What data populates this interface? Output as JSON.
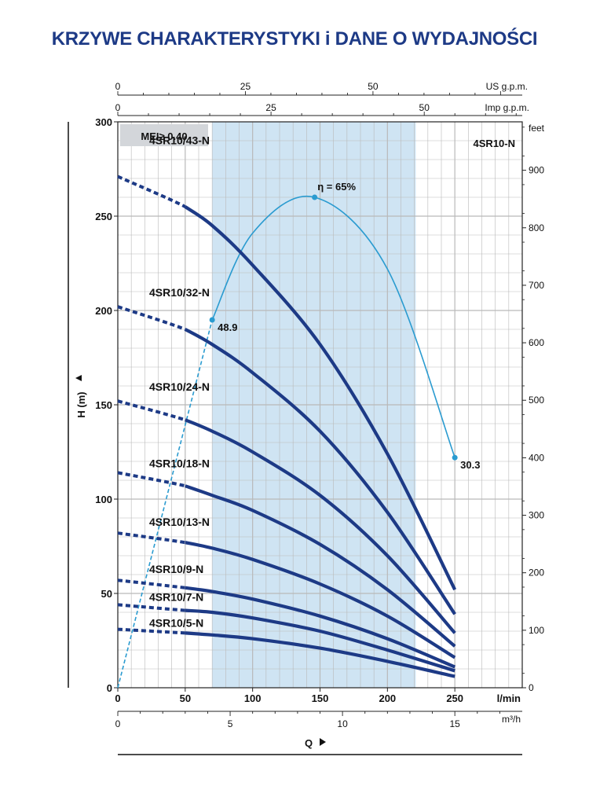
{
  "title": "KRZYWE CHARAKTERYSTYKI i DANE O WYDAJNOŚCI",
  "colors": {
    "title": "#1d3a86",
    "curve": "#1d3a86",
    "efficiency": "#2a9bd0",
    "band": "#cfe4f3",
    "grid": "#b9b9b9",
    "badge": "#d3d6da"
  },
  "chart_data": {
    "type": "line",
    "model": "4SR10-N",
    "mei": "MEI≥ 0.40",
    "grid": true,
    "xlabel": "Q",
    "ylabel": "H  (m)",
    "x_unit": "l/min",
    "xlim": [
      0,
      300
    ],
    "ylim": [
      0,
      300
    ],
    "x_ticks": [
      "0",
      "50",
      "100",
      "150",
      "200",
      "250"
    ],
    "y_ticks": [
      "0",
      "50",
      "100",
      "150",
      "200",
      "250",
      "300"
    ],
    "feet_label": "feet",
    "feet_ticks": [
      "0",
      "100",
      "200",
      "300",
      "400",
      "500",
      "600",
      "700",
      "800",
      "900"
    ],
    "usgpm_label": "US g.p.m.",
    "usgpm_ticks": [
      "0",
      "25",
      "50"
    ],
    "impgpm_label": "Imp g.p.m.",
    "impgpm_ticks": [
      "0",
      "25",
      "50"
    ],
    "m3h_label": "m³/h",
    "m3h_ticks": [
      "0",
      "5",
      "10",
      "15"
    ],
    "recommended_range": [
      70,
      221
    ],
    "series": [
      {
        "name": "4SR10/43-N",
        "x": [
          0,
          50,
          70,
          100,
          150,
          200,
          250
        ],
        "y": [
          271,
          255,
          245,
          224,
          182,
          124,
          52
        ]
      },
      {
        "name": "4SR10/32-N",
        "x": [
          0,
          50,
          70,
          100,
          150,
          200,
          250
        ],
        "y": [
          202,
          190,
          182,
          167,
          136,
          93,
          39
        ]
      },
      {
        "name": "4SR10/24-N",
        "x": [
          0,
          50,
          70,
          100,
          150,
          200,
          250
        ],
        "y": [
          152,
          142,
          136,
          125,
          102,
          70,
          29
        ]
      },
      {
        "name": "4SR10/18-N",
        "x": [
          0,
          50,
          70,
          100,
          150,
          200,
          250
        ],
        "y": [
          114,
          107,
          102,
          94,
          76,
          52,
          22
        ]
      },
      {
        "name": "4SR10/13-N",
        "x": [
          0,
          50,
          70,
          100,
          150,
          200,
          250
        ],
        "y": [
          82,
          77,
          74,
          68,
          55,
          38,
          16
        ]
      },
      {
        "name": "4SR10/9-N",
        "x": [
          0,
          50,
          70,
          100,
          150,
          200,
          250
        ],
        "y": [
          57,
          53,
          51,
          47,
          38,
          26,
          11
        ]
      },
      {
        "name": "4SR10/7-N",
        "x": [
          0,
          50,
          70,
          100,
          150,
          200,
          250
        ],
        "y": [
          44,
          41,
          40,
          37,
          30,
          20,
          9
        ]
      },
      {
        "name": "4SR10/5-N",
        "x": [
          0,
          50,
          70,
          100,
          150,
          200,
          250
        ],
        "y": [
          31,
          29,
          28,
          26,
          21,
          14,
          6
        ]
      }
    ],
    "efficiency_curve": {
      "label": "η = 65%",
      "x": [
        0,
        70,
        100,
        146,
        200,
        250
      ],
      "y": [
        0,
        195,
        241,
        260,
        222,
        122
      ]
    },
    "annotations": [
      {
        "text": "48.9",
        "x": 70,
        "y": 195
      },
      {
        "text": "30.3",
        "x": 250,
        "y": 122
      }
    ]
  }
}
